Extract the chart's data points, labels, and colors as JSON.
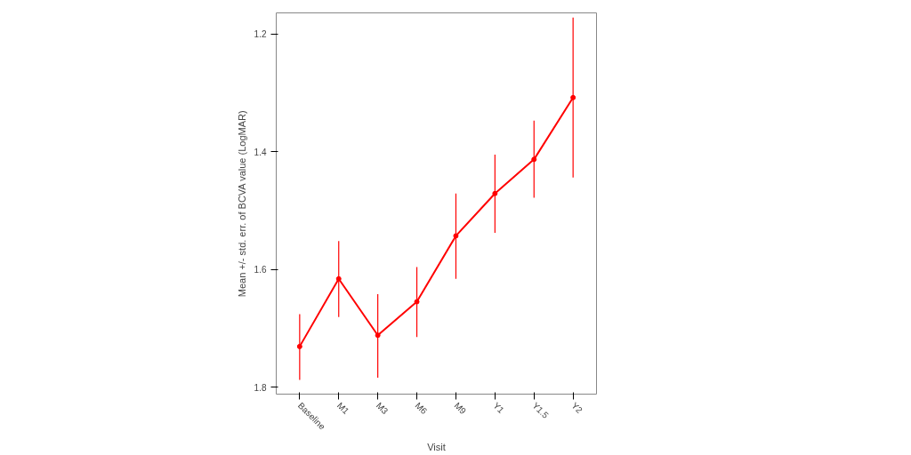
{
  "chart_data": {
    "type": "line",
    "xlabel": "Visit",
    "ylabel": "Mean +/- std. err. of BCVA value (LogMAR)",
    "categories": [
      "Baseline",
      "M1",
      "M3",
      "M6",
      "M9",
      "Y1",
      "Y1.5",
      "Y2"
    ],
    "series": [
      {
        "color": "#ff0000",
        "values": [
          1.731,
          1.616,
          1.712,
          1.655,
          1.543,
          1.471,
          1.413,
          1.308
        ],
        "errors": [
          [
            1.676,
            1.788
          ],
          [
            1.552,
            1.681
          ],
          [
            1.642,
            1.784
          ],
          [
            1.596,
            1.715
          ],
          [
            1.471,
            1.616
          ],
          [
            1.405,
            1.538
          ],
          [
            1.347,
            1.478
          ],
          [
            1.172,
            1.444
          ]
        ]
      }
    ],
    "ylim": [
      1.812,
      1.164
    ],
    "yticks": [
      1.2,
      1.4,
      1.6,
      1.8
    ],
    "marker": "circle",
    "line_style": "solid",
    "grid": false
  }
}
